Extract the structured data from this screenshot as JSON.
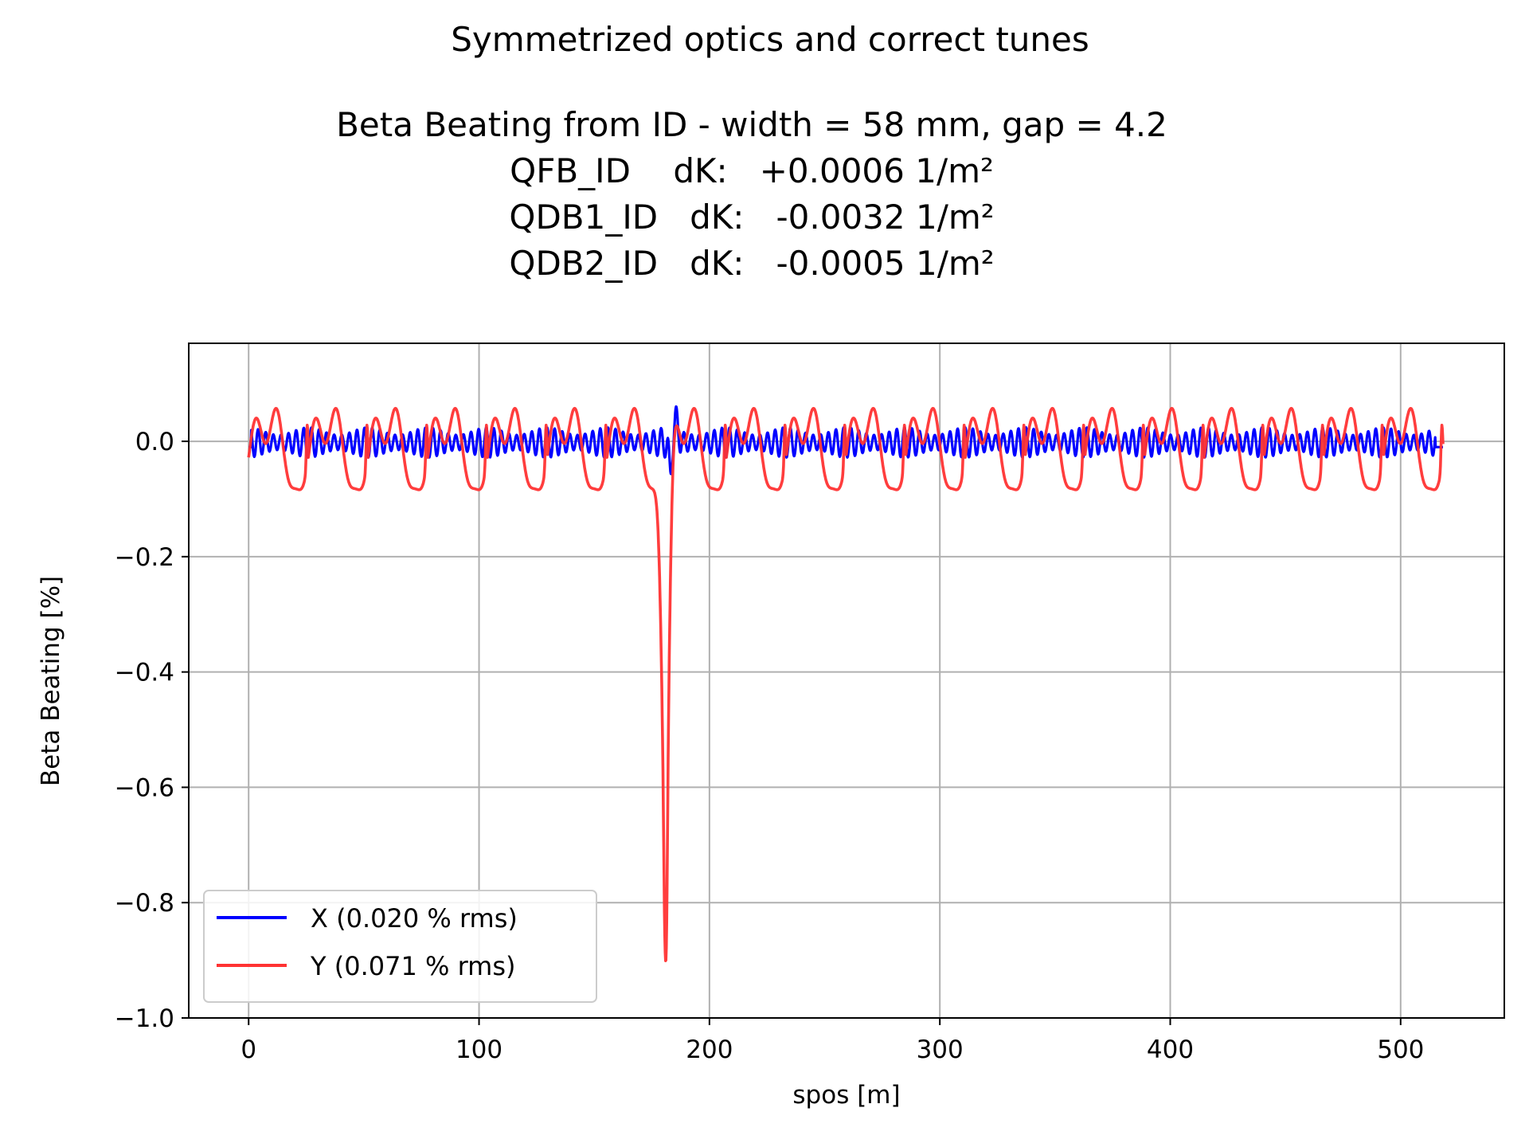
{
  "suptitle": "Symmetrized optics and correct tunes",
  "title_lines": [
    "Beta Beating from ID - width = 58 mm, gap = 4.2",
    "QFB_ID    dK:   +0.0006 1/m²",
    "QDB1_ID   dK:   -0.0032 1/m²",
    "QDB2_ID   dK:   -0.0005 1/m²"
  ],
  "chart_data": {
    "type": "line",
    "xlabel": "spos [m]",
    "ylabel": "Beta Beating [%]",
    "xlim": [
      -26,
      545
    ],
    "ylim": [
      -1.0,
      0.17
    ],
    "x_ticks": [
      0,
      100,
      200,
      300,
      400,
      500
    ],
    "y_ticks": [
      0.0,
      -0.2,
      -0.4,
      -0.6,
      -0.8,
      -1.0
    ],
    "x_tick_labels": [
      "0",
      "100",
      "200",
      "300",
      "400",
      "500"
    ],
    "y_tick_labels": [
      "0.0",
      "−0.2",
      "−0.4",
      "−0.6",
      "−0.8",
      "−1.0"
    ],
    "grid": true,
    "legend_position": "lower-left",
    "x_range": [
      0,
      518.4
    ],
    "series": [
      {
        "name": "X (0.020 % rms)",
        "color": "#0000ff",
        "description": "fast oscillation approx. ±0.03 % with ~24 periodic cells; localized excursion near s = 180–186 m reaching +0.06 and -0.065",
        "key_points": [
          [
            0,
            -0.01
          ],
          [
            183,
            -0.065
          ],
          [
            185.5,
            0.06
          ],
          [
            518.4,
            -0.01
          ]
        ]
      },
      {
        "name": "Y (0.071 % rms)",
        "color": "#ff3333",
        "description": "periodic oscillation between about -0.085 and +0.11 with period ~25.9 m; sharp dip at s ≈ 181 m to about -0.95",
        "key_points": [
          [
            0,
            -0.05
          ],
          [
            25.5,
            0.11
          ],
          [
            29,
            -0.085
          ],
          [
            181,
            -0.95
          ],
          [
            518.4,
            -0.05
          ]
        ]
      }
    ]
  }
}
